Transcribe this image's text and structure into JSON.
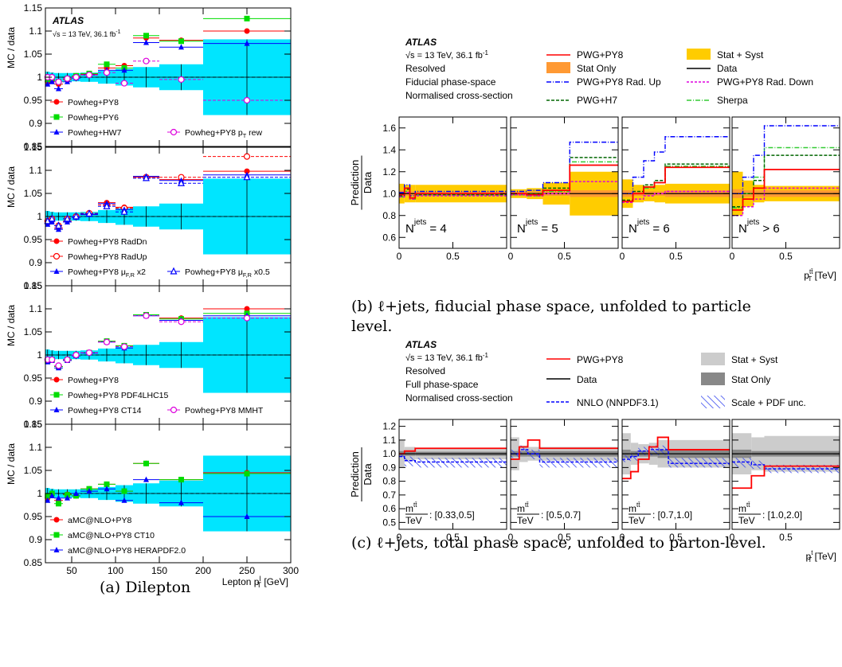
{
  "captions": {
    "a": "(a) Dilepton",
    "b_line1": "(b) ℓ+jets, fiducial phase space, unfolded to particle",
    "b_line2": "level.",
    "c": "(c) ℓ+jets, total phase space, unfolded to parton-level."
  },
  "colors": {
    "cyan_band": "#00e5ff",
    "red": "#ff0000",
    "green": "#00dd00",
    "blue": "#0000ff",
    "magenta": "#dd00dd",
    "stat_syst_yellow": "#ffcc00",
    "stat_only_orange": "#ff9933",
    "light_grey": "#cccccc",
    "dark_grey": "#888888",
    "hatch_blue": "#4444ff",
    "dark_green": "#006600",
    "lime": "#33cc33"
  },
  "chart_data": [
    {
      "id": "a",
      "type": "scatter",
      "ylabel": "MC / data",
      "xlabel": "Lepton p",
      "xlabel_sup": "l",
      "xlabel_sub": "T",
      "xlabel_unit": " [GeV]",
      "xlim": [
        20,
        300
      ],
      "ylim": [
        0.85,
        1.15
      ],
      "x_ticks": [
        "50",
        "100",
        "150",
        "200",
        "250",
        "300"
      ],
      "y_ticks": [
        "0.85",
        "0.9",
        "0.95",
        "1",
        "1.05",
        "1.1",
        "1.15"
      ],
      "atlas": "ATLAS",
      "energy": "√s = 13 TeV, 36.1 fb",
      "energy_sup": "-1",
      "bins": [
        [
          20,
          25
        ],
        [
          25,
          30
        ],
        [
          30,
          40
        ],
        [
          40,
          50
        ],
        [
          50,
          60
        ],
        [
          60,
          80
        ],
        [
          80,
          100
        ],
        [
          100,
          120
        ],
        [
          120,
          150
        ],
        [
          150,
          200
        ],
        [
          200,
          300
        ]
      ],
      "bins_x": [
        22.5,
        27.5,
        35,
        45,
        55,
        70,
        90,
        110,
        135,
        175,
        250
      ],
      "band_half": [
        0.012,
        0.01,
        0.009,
        0.009,
        0.009,
        0.01,
        0.014,
        0.018,
        0.022,
        0.028,
        0.082
      ],
      "panels": [
        {
          "legend": [
            "Powheg+PY8",
            "Powheg+PY6",
            "Powheg+HW7",
            "Powheg+PY8 p_T rew"
          ],
          "series": [
            {
              "name": "Powheg+PY8",
              "marker": "circle",
              "color": "#ff0000",
              "values": [
                0.99,
                0.993,
                0.985,
                0.995,
                1.002,
                1.007,
                1.02,
                1.025,
                1.085,
                1.08,
                1.1
              ]
            },
            {
              "name": "Powheg+PY6",
              "marker": "square",
              "color": "#00dd00",
              "values": [
                0.995,
                0.998,
                0.99,
                0.997,
                1.003,
                1.008,
                1.028,
                1.02,
                1.09,
                1.078,
                1.127
              ]
            },
            {
              "name": "Powheg+HW7",
              "marker": "triangle",
              "color": "#0000ff",
              "values": [
                0.985,
                0.99,
                0.975,
                0.99,
                0.998,
                1.005,
                1.015,
                1.015,
                1.075,
                1.065,
                1.073
              ]
            },
            {
              "name": "Powheg+PY8 p_T rew",
              "marker": "open-circle",
              "color": "#dd00dd",
              "values": [
                1.0,
                1.0,
                0.99,
                0.997,
                1.0,
                1.005,
                1.01,
                0.987,
                1.035,
                0.995,
                0.95
              ]
            }
          ]
        },
        {
          "legend": [
            "Powheg+PY8 RadDn",
            "Powheg+PY8 RadUp",
            "Powheg+PY8 μ_F,R x2",
            "Powheg+PY8 μ_F,R x0.5"
          ],
          "series": [
            {
              "name": "Powheg+PY8 RadDn",
              "marker": "circle",
              "color": "#ff0000",
              "values": [
                0.985,
                0.99,
                0.975,
                0.99,
                1.0,
                1.005,
                1.03,
                1.02,
                1.085,
                1.08,
                1.098
              ]
            },
            {
              "name": "Powheg+PY8 RadUp",
              "marker": "open-circle",
              "color": "#ff0000",
              "values": [
                0.99,
                0.995,
                0.98,
                0.995,
                1.0,
                1.007,
                1.025,
                1.018,
                1.085,
                1.085,
                1.13
              ]
            },
            {
              "name": "Powheg+PY8 μ_F,R x2",
              "marker": "triangle",
              "color": "#0000ff",
              "values": [
                0.983,
                0.988,
                0.972,
                0.988,
                0.998,
                1.004,
                1.028,
                1.015,
                1.087,
                1.078,
                1.09
              ]
            },
            {
              "name": "Powheg+PY8 μ_F,R x0.5",
              "marker": "open-triangle",
              "color": "#0000ff",
              "values": [
                0.99,
                0.995,
                0.98,
                0.995,
                1.0,
                1.006,
                1.022,
                1.01,
                1.083,
                1.072,
                1.085
              ]
            }
          ]
        },
        {
          "legend": [
            "Powheg+PY8",
            "Powheg+PY8 PDF4LHC15",
            "Powheg+PY8 CT14",
            "Powheg+PY8 MMHT"
          ],
          "series": [
            {
              "name": "Powheg+PY8",
              "marker": "circle",
              "color": "#ff0000",
              "values": [
                0.988,
                0.99,
                0.975,
                0.99,
                1.0,
                1.005,
                1.03,
                1.02,
                1.087,
                1.08,
                1.1
              ]
            },
            {
              "name": "Powheg+PY8 PDF4LHC15",
              "marker": "square",
              "color": "#00dd00",
              "values": [
                0.987,
                0.99,
                0.975,
                0.99,
                1.0,
                1.005,
                1.03,
                1.02,
                1.087,
                1.078,
                1.09
              ]
            },
            {
              "name": "Powheg+PY8 CT14",
              "marker": "triangle",
              "color": "#0000ff",
              "values": [
                0.985,
                0.988,
                0.972,
                0.988,
                0.998,
                1.004,
                1.028,
                1.015,
                1.085,
                1.075,
                1.085
              ]
            },
            {
              "name": "Powheg+PY8 MMHT",
              "marker": "open-circle",
              "color": "#dd00dd",
              "values": [
                0.99,
                0.99,
                0.977,
                0.99,
                1.0,
                1.005,
                1.028,
                1.018,
                1.085,
                1.072,
                1.08
              ]
            }
          ]
        },
        {
          "legend": [
            "aMC@NLO+PY8",
            "aMC@NLO+PY8 CT10",
            "aMC@NLO+PY8 HERAPDF2.0"
          ],
          "series": [
            {
              "name": "aMC@NLO+PY8",
              "marker": "circle",
              "color": "#ff0000",
              "values": [
                0.99,
                1.0,
                0.985,
                0.998,
                0.995,
                1.01,
                1.02,
                1.005,
                1.065,
                1.03,
                1.045
              ]
            },
            {
              "name": "aMC@NLO+PY8 CT10",
              "marker": "square",
              "color": "#00dd00",
              "values": [
                0.995,
                1.0,
                0.978,
                0.997,
                0.995,
                1.01,
                1.02,
                1.005,
                1.065,
                1.03,
                1.043
              ]
            },
            {
              "name": "aMC@NLO+PY8 HERAPDF2.0",
              "marker": "triangle",
              "color": "#0000ff",
              "values": [
                0.985,
                0.995,
                0.99,
                0.99,
                1.0,
                1.005,
                1.01,
                0.985,
                1.03,
                0.98,
                0.95
              ]
            }
          ]
        }
      ]
    },
    {
      "id": "b",
      "type": "line",
      "ylabel_num": "Prediction",
      "ylabel_den": "Data",
      "xlabel": "p",
      "xlabel_sup": "tt̄",
      "xlabel_sub": "T",
      "xlabel_unit": " [TeV]",
      "atlas": "ATLAS",
      "energy": "√s = 13 TeV, 36.1 fb",
      "energy_sup": "-1",
      "info": [
        "Resolved",
        "Fiducial phase-space",
        "Normalised cross-section"
      ],
      "legend": [
        "PWG+PY8",
        "Stat Only",
        "PWG+PY8 Rad. Up",
        "PWG+H7",
        "Stat + Syst",
        "Data",
        "PWG+PY8 Rad. Down",
        "Sherpa"
      ],
      "ylim": [
        0.5,
        1.7
      ],
      "xlim": [
        0,
        1
      ],
      "y_ticks": [
        "0.6",
        "0.8",
        "1.0",
        "1.2",
        "1.4",
        "1.6"
      ],
      "x_ticks": [
        "0",
        "0.5"
      ],
      "subpanels": [
        {
          "label": "= 4",
          "label_pre": "N",
          "label_sup": "jets",
          "edges": [
            0,
            0.05,
            0.1,
            0.15,
            1.0
          ],
          "band_syst": [
            0.09,
            0.08,
            0.08,
            0.08
          ],
          "band_stat": [
            0.03,
            0.02,
            0.02,
            0.02
          ],
          "pwg": [
            0.99,
            1.05,
            0.96,
            1.0
          ],
          "radup": [
            1.01,
            1.08,
            0.98,
            1.02
          ],
          "raddn": [
            0.97,
            1.01,
            0.95,
            0.98
          ],
          "h7": [
            0.98,
            1.04,
            0.96,
            0.99
          ],
          "sherpa": [
            0.97,
            1.02,
            0.95,
            0.99
          ]
        },
        {
          "label": "= 5",
          "label_pre": "N",
          "label_sup": "jets",
          "edges": [
            0,
            0.15,
            0.3,
            0.55,
            1.0
          ],
          "band_syst": [
            0.04,
            0.05,
            0.1,
            0.2
          ],
          "band_stat": [
            0.02,
            0.02,
            0.02,
            0.03
          ],
          "pwg": [
            1.0,
            0.99,
            1.03,
            1.26
          ],
          "radup": [
            1.02,
            1.03,
            1.1,
            1.47
          ],
          "raddn": [
            0.99,
            0.98,
            1.0,
            1.11
          ],
          "h7": [
            1.0,
            1.0,
            1.05,
            1.33
          ],
          "sherpa": [
            0.99,
            0.98,
            1.02,
            1.29
          ]
        },
        {
          "label": "= 6",
          "label_pre": "N",
          "label_sup": "jets",
          "edges": [
            0,
            0.1,
            0.2,
            0.3,
            0.4,
            1.0
          ],
          "band_syst": [
            0.13,
            0.08,
            0.07,
            0.08,
            0.09
          ],
          "band_stat": [
            0.03,
            0.02,
            0.02,
            0.02,
            0.03
          ],
          "pwg": [
            0.93,
            1.0,
            1.06,
            1.1,
            1.24
          ],
          "radup": [
            1.0,
            1.15,
            1.3,
            1.38,
            1.52
          ],
          "raddn": [
            0.92,
            0.95,
            0.98,
            1.0,
            1.02
          ],
          "h7": [
            0.94,
            1.02,
            1.08,
            1.12,
            1.27
          ],
          "sherpa": [
            0.93,
            1.0,
            1.05,
            1.1,
            1.25
          ]
        },
        {
          "label": "> 6",
          "label_pre": "N",
          "label_sup": "jets",
          "edges": [
            0,
            0.1,
            0.2,
            0.3,
            1.0
          ],
          "band_syst": [
            0.2,
            0.12,
            0.08,
            0.07
          ],
          "band_stat": [
            0.04,
            0.03,
            0.03,
            0.03
          ],
          "pwg": [
            0.85,
            0.95,
            1.05,
            1.22
          ],
          "radup": [
            1.0,
            1.15,
            1.35,
            1.62
          ],
          "raddn": [
            0.8,
            0.88,
            0.95,
            1.05
          ],
          "h7": [
            0.88,
            1.0,
            1.12,
            1.35
          ],
          "sherpa": [
            0.87,
            1.0,
            1.15,
            1.42
          ]
        }
      ]
    },
    {
      "id": "c",
      "type": "line",
      "ylabel_num": "Prediction",
      "ylabel_den": "Data",
      "xlabel": "p",
      "xlabel_sup": "t",
      "xlabel_sub": "T",
      "xlabel_unit": " [TeV]",
      "atlas": "ATLAS",
      "energy": "√s = 13 TeV, 36.1 fb",
      "energy_sup": "-1",
      "info": [
        "Resolved",
        "Full phase-space",
        "Normalised cross-section"
      ],
      "legend": [
        "PWG+PY8",
        "Data",
        "NNLO (NNPDF3.1)",
        "Stat + Syst",
        "Stat Only",
        "Scale + PDF unc."
      ],
      "ylim": [
        0.45,
        1.25
      ],
      "xlim": [
        0,
        1
      ],
      "y_ticks": [
        "0.5",
        "0.6",
        "0.7",
        "0.8",
        "0.9",
        "1.0",
        "1.1",
        "1.2"
      ],
      "x_ticks": [
        "0",
        "0.5"
      ],
      "subpanels": [
        {
          "label": ": [0.33,0.5]",
          "edges": [
            0,
            0.05,
            0.15,
            1.0
          ],
          "band_syst": [
            0.1,
            0.05,
            0.04
          ],
          "band_stat": [
            0.02,
            0.015,
            0.015
          ],
          "pwg": [
            1.0,
            1.02,
            1.04
          ],
          "nnlo": [
            0.98,
            0.95,
            0.94
          ],
          "hatch": [
            [
              0.96,
              1.0
            ],
            [
              0.91,
              0.98
            ],
            [
              0.9,
              0.97
            ]
          ]
        },
        {
          "label": ": [0.5,0.7]",
          "edges": [
            0,
            0.08,
            0.16,
            0.27,
            1.0
          ],
          "band_syst": [
            0.12,
            0.06,
            0.05,
            0.05
          ],
          "band_stat": [
            0.02,
            0.02,
            0.02,
            0.02
          ],
          "pwg": [
            0.96,
            1.05,
            1.1,
            1.04
          ],
          "nnlo": [
            1.0,
            1.03,
            1.0,
            0.94
          ],
          "hatch": [
            [
              0.97,
              1.03
            ],
            [
              1.0,
              1.06
            ],
            [
              0.96,
              1.03
            ],
            [
              0.9,
              0.97
            ]
          ]
        },
        {
          "label": ": [0.7,1.0]",
          "edges": [
            0,
            0.08,
            0.15,
            0.25,
            0.33,
            0.43,
            1.0
          ],
          "band_syst": [
            0.15,
            0.08,
            0.07,
            0.08,
            0.1,
            0.1
          ],
          "band_stat": [
            0.03,
            0.02,
            0.02,
            0.02,
            0.03,
            0.03
          ],
          "pwg": [
            0.82,
            0.87,
            0.96,
            1.05,
            1.12,
            1.03
          ],
          "nnlo": [
            0.96,
            0.98,
            1.02,
            1.03,
            1.03,
            0.93
          ],
          "hatch": [
            [
              0.94,
              0.99
            ],
            [
              0.95,
              1.01
            ],
            [
              0.99,
              1.05
            ],
            [
              0.99,
              1.06
            ],
            [
              0.99,
              1.06
            ],
            [
              0.9,
              0.97
            ]
          ]
        },
        {
          "label": ": [1.0,2.0]",
          "edges": [
            0,
            0.18,
            0.3,
            1.0
          ],
          "band_syst": [
            0.15,
            0.12,
            0.13
          ],
          "band_stat": [
            0.03,
            0.02,
            0.02
          ],
          "pwg": [
            0.75,
            0.84,
            0.91
          ],
          "nnlo": [
            0.94,
            0.92,
            0.89
          ],
          "hatch": [
            [
              0.9,
              0.97
            ],
            [
              0.89,
              0.95
            ],
            [
              0.86,
              0.92
            ]
          ]
        }
      ]
    }
  ]
}
